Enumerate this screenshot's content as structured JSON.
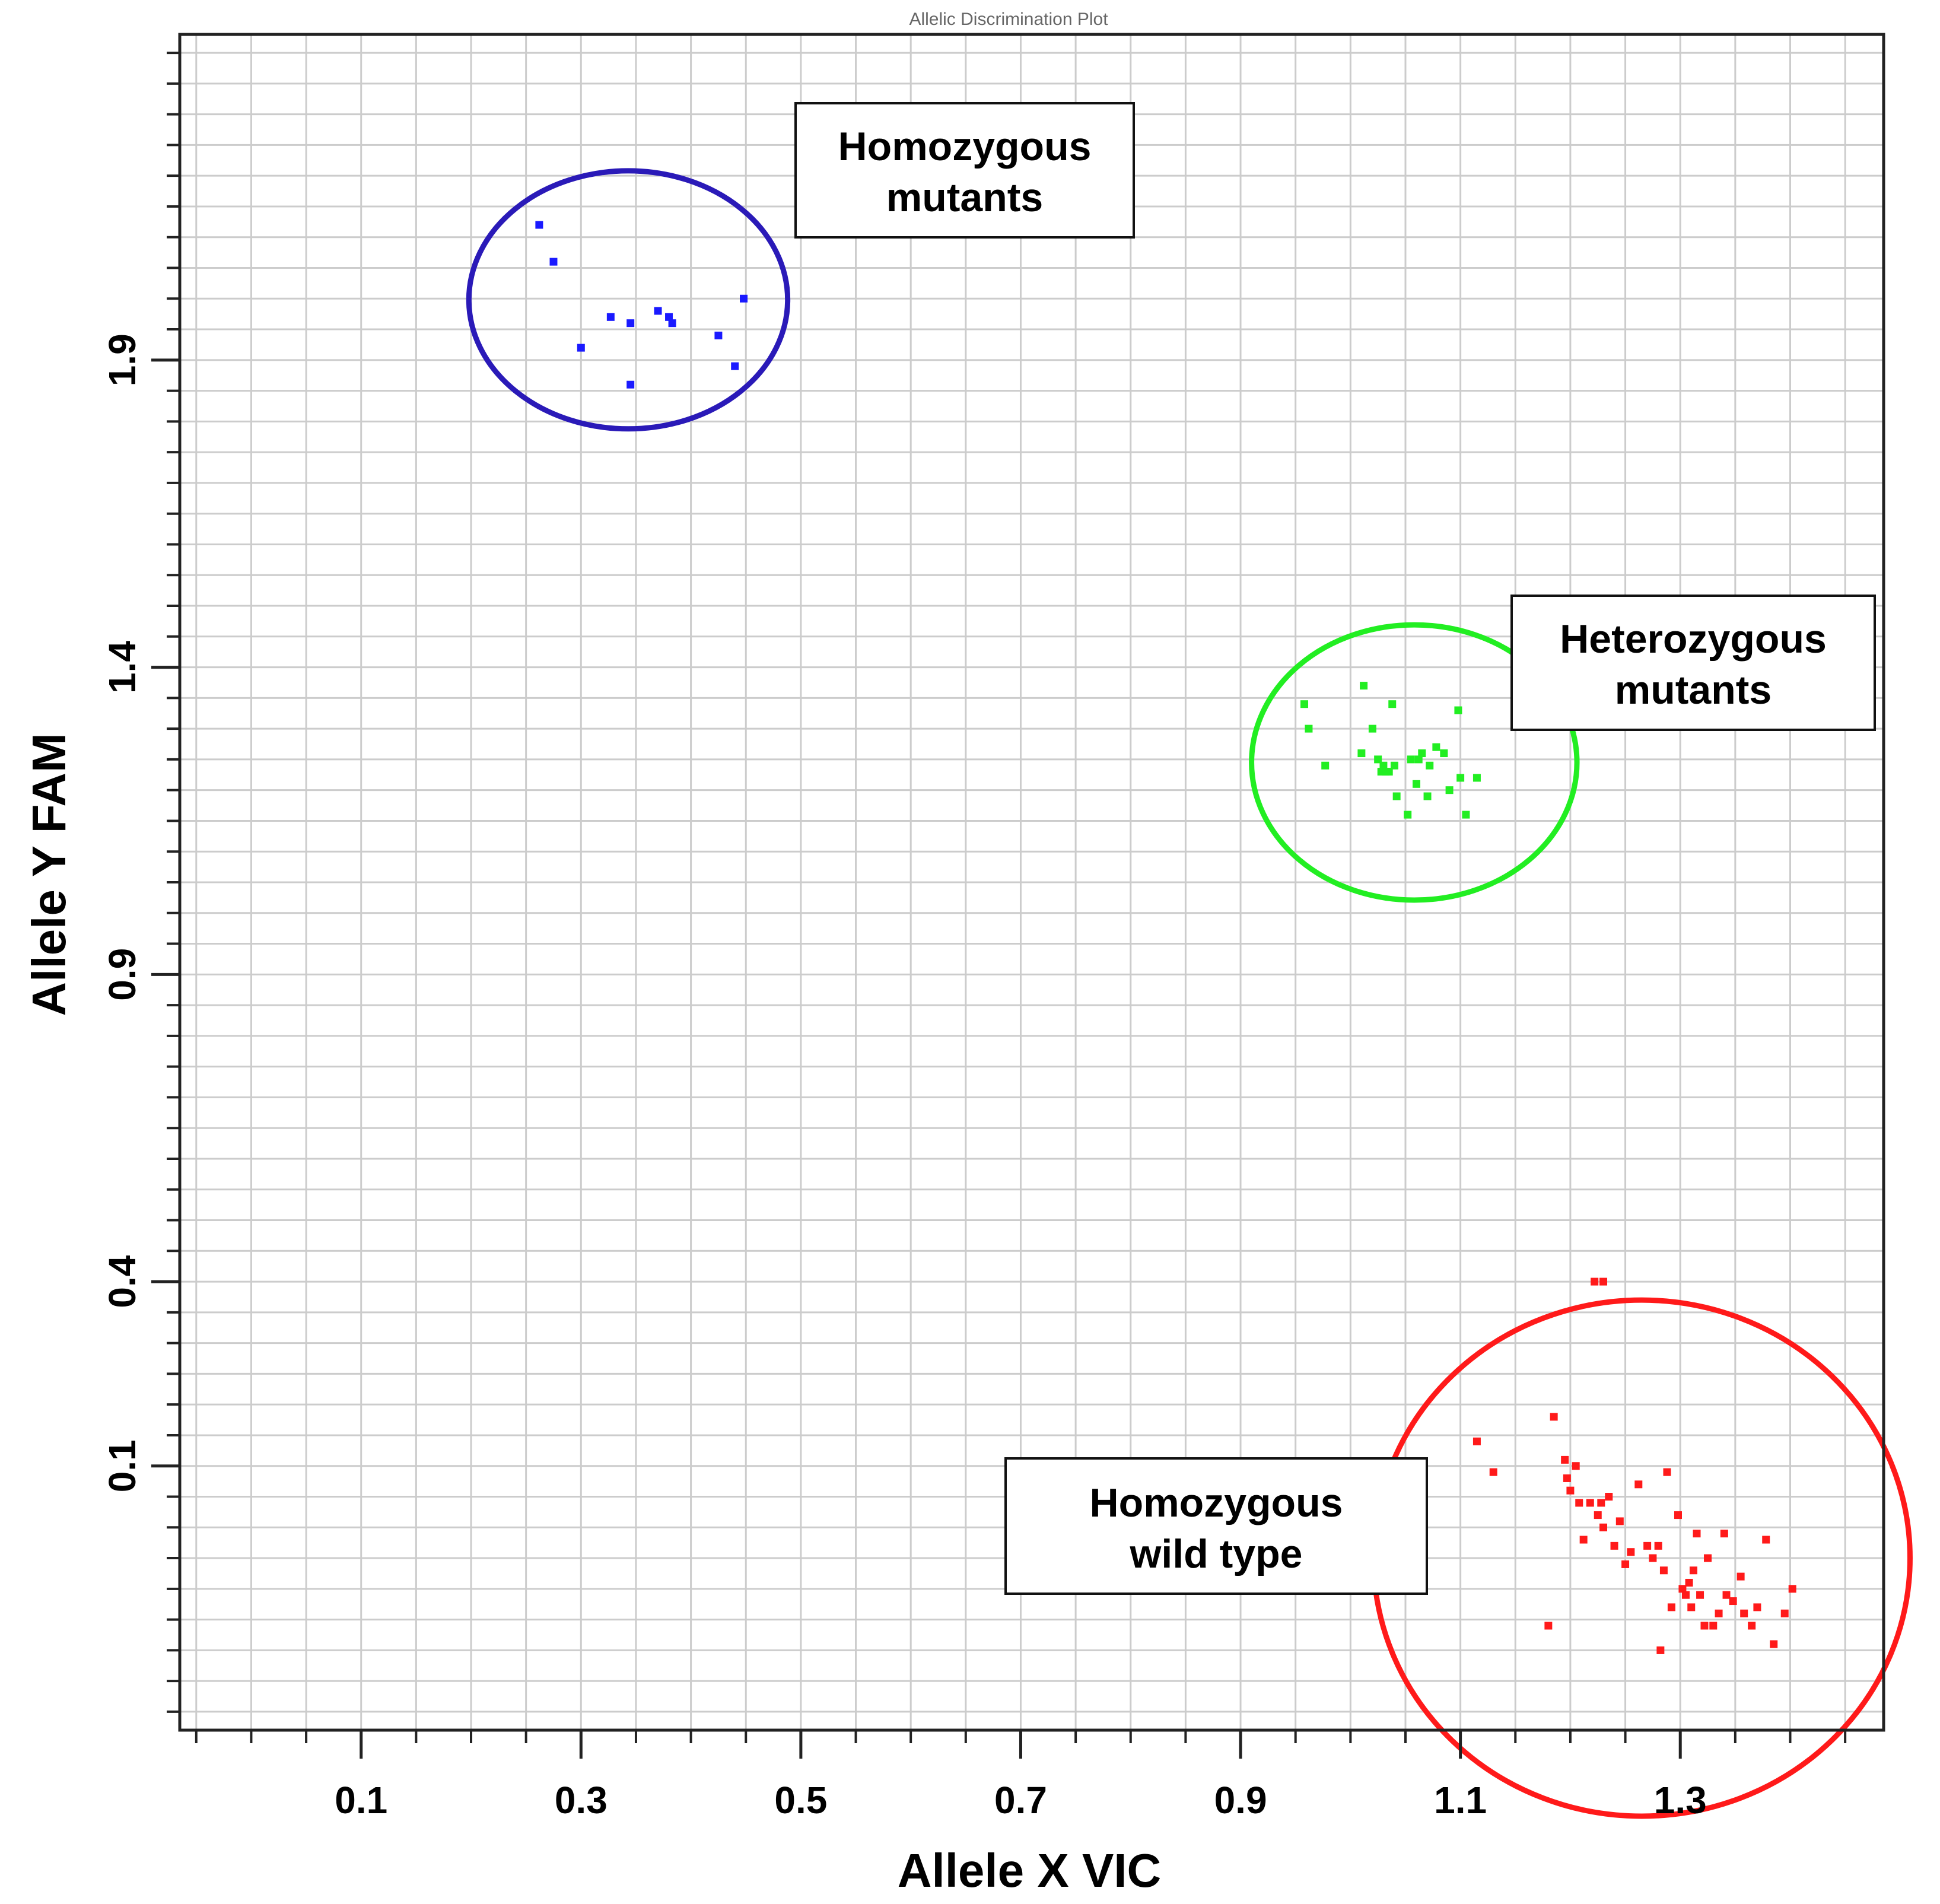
{
  "chart_data": {
    "type": "scatter",
    "title": "Allelic Discrimination Plot",
    "xlabel": "Allele X VIC",
    "ylabel": "Allele Y FAM",
    "xlim": [
      -0.065,
      1.485
    ],
    "ylim": [
      -0.33,
      2.43
    ],
    "xticks": [
      0.1,
      0.3,
      0.5,
      0.7,
      0.9,
      1.1,
      1.3
    ],
    "yticks": [
      0.1,
      0.4,
      0.9,
      1.4,
      1.9
    ],
    "grid": true,
    "series": [
      {
        "name": "Homozygous mutants",
        "color": "#1a1aff",
        "marker_style": "square",
        "points": [
          [
            0.262,
            2.12
          ],
          [
            0.275,
            2.06
          ],
          [
            0.3,
            1.92
          ],
          [
            0.327,
            1.97
          ],
          [
            0.345,
            1.96
          ],
          [
            0.37,
            1.98
          ],
          [
            0.38,
            1.97
          ],
          [
            0.383,
            1.96
          ],
          [
            0.425,
            1.94
          ],
          [
            0.448,
            2.0
          ],
          [
            0.44,
            1.89
          ],
          [
            0.345,
            1.86
          ]
        ]
      },
      {
        "name": "Heterozygous mutants",
        "color": "#22ee22",
        "marker_style": "square",
        "points": [
          [
            0.958,
            1.34
          ],
          [
            0.962,
            1.3
          ],
          [
            0.977,
            1.24
          ],
          [
            1.012,
            1.37
          ],
          [
            1.038,
            1.34
          ],
          [
            1.02,
            1.3
          ],
          [
            1.01,
            1.26
          ],
          [
            1.025,
            1.25
          ],
          [
            1.028,
            1.23
          ],
          [
            1.03,
            1.24
          ],
          [
            1.035,
            1.23
          ],
          [
            1.04,
            1.24
          ],
          [
            1.042,
            1.19
          ],
          [
            1.052,
            1.16
          ],
          [
            1.055,
            1.25
          ],
          [
            1.06,
            1.21
          ],
          [
            1.065,
            1.26
          ],
          [
            1.072,
            1.24
          ],
          [
            1.07,
            1.19
          ],
          [
            1.078,
            1.27
          ],
          [
            1.085,
            1.26
          ],
          [
            1.09,
            1.2
          ],
          [
            1.098,
            1.33
          ],
          [
            1.1,
            1.22
          ],
          [
            1.105,
            1.16
          ],
          [
            1.115,
            1.22
          ],
          [
            1.062,
            1.25
          ],
          [
            1.032,
            1.23
          ]
        ]
      },
      {
        "name": "Homozygous wild type",
        "color": "#ff1a1a",
        "marker_style": "square",
        "points": [
          [
            1.222,
            0.4
          ],
          [
            1.23,
            0.4
          ],
          [
            1.115,
            0.14
          ],
          [
            1.13,
            0.09
          ],
          [
            1.185,
            0.18
          ],
          [
            1.195,
            0.11
          ],
          [
            1.197,
            0.08
          ],
          [
            1.2,
            0.06
          ],
          [
            1.205,
            0.1
          ],
          [
            1.208,
            0.04
          ],
          [
            1.212,
            -0.02
          ],
          [
            1.218,
            0.04
          ],
          [
            1.225,
            0.02
          ],
          [
            1.228,
            0.04
          ],
          [
            1.23,
            0.0
          ],
          [
            1.235,
            0.05
          ],
          [
            1.24,
            -0.03
          ],
          [
            1.245,
            0.01
          ],
          [
            1.25,
            -0.06
          ],
          [
            1.255,
            -0.04
          ],
          [
            1.262,
            0.07
          ],
          [
            1.27,
            -0.03
          ],
          [
            1.275,
            -0.05
          ],
          [
            1.28,
            -0.03
          ],
          [
            1.285,
            -0.07
          ],
          [
            1.288,
            0.09
          ],
          [
            1.292,
            -0.13
          ],
          [
            1.298,
            0.02
          ],
          [
            1.302,
            -0.1
          ],
          [
            1.305,
            -0.11
          ],
          [
            1.308,
            -0.09
          ],
          [
            1.31,
            -0.13
          ],
          [
            1.312,
            -0.07
          ],
          [
            1.315,
            -0.01
          ],
          [
            1.318,
            -0.11
          ],
          [
            1.322,
            -0.16
          ],
          [
            1.325,
            -0.05
          ],
          [
            1.33,
            -0.16
          ],
          [
            1.335,
            -0.14
          ],
          [
            1.34,
            -0.01
          ],
          [
            1.342,
            -0.11
          ],
          [
            1.348,
            -0.12
          ],
          [
            1.355,
            -0.08
          ],
          [
            1.358,
            -0.14
          ],
          [
            1.365,
            -0.16
          ],
          [
            1.37,
            -0.13
          ],
          [
            1.378,
            -0.02
          ],
          [
            1.385,
            -0.19
          ],
          [
            1.395,
            -0.14
          ],
          [
            1.402,
            -0.1
          ],
          [
            1.18,
            -0.16
          ],
          [
            1.282,
            -0.2
          ]
        ]
      }
    ],
    "cluster_ellipses": [
      {
        "name": "Homozygous mutants",
        "color": "#2a1ab8",
        "center": [
          0.343,
          1.998
        ],
        "radius_x": 0.145,
        "radius_y": 0.21
      },
      {
        "name": "Heterozygous mutants",
        "color": "#22ee22",
        "center": [
          1.058,
          1.245
        ],
        "radius_x": 0.148,
        "radius_y": 0.224
      },
      {
        "name": "Homozygous wild type",
        "color": "#ff1a1a",
        "center": [
          1.265,
          -0.05
        ],
        "radius_x": 0.244,
        "radius_y": 0.42
      }
    ],
    "annotations": [
      {
        "name": "Homozygous mutants",
        "lines": [
          "Homozygous",
          "mutants"
        ]
      },
      {
        "name": "Heterozygous mutants",
        "lines": [
          "Heterozygous",
          "mutants"
        ]
      },
      {
        "name": "Homozygous wild type",
        "lines": [
          "Homozygous",
          "wild type"
        ]
      }
    ]
  }
}
